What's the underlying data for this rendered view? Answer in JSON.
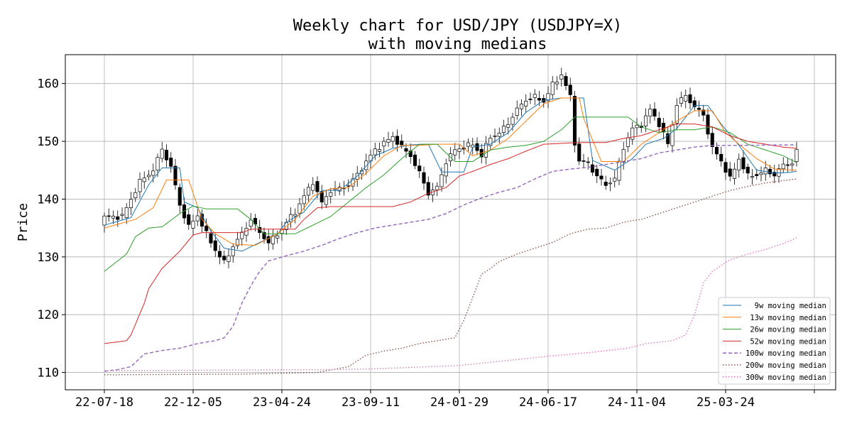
{
  "chart_data": {
    "type": "candlestick",
    "title_line1": "Weekly chart for USD/JPY (USDJPY=X)",
    "title_line2": "with moving medians",
    "ylabel": "Price",
    "xlabel": "",
    "ylim": [
      107,
      165
    ],
    "yticks": [
      110,
      120,
      130,
      140,
      150,
      160
    ],
    "xtick_labels": [
      "22-07-18",
      "22-12-05",
      "23-04-24",
      "23-09-11",
      "24-01-29",
      "24-06-17",
      "24-11-04",
      "25-03-24"
    ],
    "xtick_indices": [
      0,
      20,
      40,
      60,
      80,
      100,
      120,
      140
    ],
    "n_weeks": 157,
    "grid": true,
    "legend_position": "lower right",
    "anchors_close": [
      [
        0,
        136.9
      ],
      [
        4,
        137.0
      ],
      [
        8,
        143.0
      ],
      [
        11,
        145.0
      ],
      [
        13,
        148.7
      ],
      [
        15,
        145.5
      ],
      [
        17,
        139.0
      ],
      [
        19,
        135.2
      ],
      [
        21,
        137.2
      ],
      [
        23,
        134.0
      ],
      [
        25,
        131.2
      ],
      [
        27,
        129.0
      ],
      [
        29,
        131.9
      ],
      [
        31,
        134.0
      ],
      [
        33,
        136.5
      ],
      [
        35,
        134.2
      ],
      [
        37,
        132.5
      ],
      [
        39,
        133.9
      ],
      [
        41,
        136.0
      ],
      [
        43,
        137.8
      ],
      [
        45,
        140.5
      ],
      [
        47,
        143.0
      ],
      [
        49,
        139.3
      ],
      [
        51,
        141.5
      ],
      [
        53,
        141.8
      ],
      [
        55,
        142.5
      ],
      [
        57,
        144.2
      ],
      [
        59,
        146.5
      ],
      [
        61,
        148.5
      ],
      [
        63,
        149.7
      ],
      [
        65,
        150.8
      ],
      [
        67,
        149.0
      ],
      [
        69,
        147.5
      ],
      [
        71,
        144.5
      ],
      [
        73,
        141.0
      ],
      [
        75,
        142.0
      ],
      [
        77,
        146.5
      ],
      [
        79,
        148.5
      ],
      [
        81,
        149.0
      ],
      [
        83,
        149.5
      ],
      [
        85,
        147.5
      ],
      [
        87,
        150.8
      ],
      [
        89,
        151.4
      ],
      [
        91,
        153.2
      ],
      [
        93,
        155.5
      ],
      [
        95,
        157.2
      ],
      [
        97,
        157.7
      ],
      [
        99,
        156.9
      ],
      [
        101,
        159.8
      ],
      [
        103,
        161.5
      ],
      [
        105,
        157.7
      ],
      [
        106,
        149.8
      ],
      [
        107,
        146.5
      ],
      [
        109,
        146.2
      ],
      [
        111,
        143.9
      ],
      [
        113,
        142.5
      ],
      [
        115,
        143.5
      ],
      [
        117,
        149.0
      ],
      [
        119,
        152.2
      ],
      [
        121,
        152.9
      ],
      [
        123,
        155.5
      ],
      [
        125,
        153.0
      ],
      [
        127,
        149.5
      ],
      [
        129,
        156.5
      ],
      [
        131,
        157.9
      ],
      [
        133,
        156.0
      ],
      [
        135,
        154.5
      ],
      [
        137,
        148.8
      ],
      [
        139,
        146.6
      ],
      [
        141,
        143.5
      ],
      [
        143,
        147.0
      ],
      [
        145,
        144.0
      ],
      [
        147,
        144.2
      ],
      [
        149,
        145.0
      ],
      [
        151,
        144.2
      ],
      [
        153,
        145.9
      ],
      [
        155,
        146.3
      ],
      [
        156,
        148.2
      ]
    ],
    "anchors_ma9": [
      [
        0,
        135.5
      ],
      [
        6,
        136.8
      ],
      [
        10,
        142.5
      ],
      [
        13,
        145.4
      ],
      [
        17,
        145.4
      ],
      [
        18,
        139.5
      ],
      [
        21,
        138.5
      ],
      [
        24,
        134.5
      ],
      [
        27,
        131.5
      ],
      [
        31,
        131.0
      ],
      [
        35,
        132.5
      ],
      [
        39,
        133.9
      ],
      [
        41,
        136.0
      ],
      [
        45,
        137.8
      ],
      [
        49,
        141.5
      ],
      [
        53,
        141.5
      ],
      [
        57,
        144.0
      ],
      [
        61,
        147.5
      ],
      [
        65,
        148.8
      ],
      [
        69,
        149.4
      ],
      [
        73,
        149.5
      ],
      [
        76,
        144.7
      ],
      [
        81,
        144.7
      ],
      [
        83,
        149.0
      ],
      [
        87,
        149.5
      ],
      [
        91,
        151.5
      ],
      [
        95,
        155.0
      ],
      [
        99,
        157.1
      ],
      [
        103,
        157.5
      ],
      [
        108,
        157.5
      ],
      [
        110,
        146.7
      ],
      [
        115,
        145.0
      ],
      [
        119,
        147.0
      ],
      [
        122,
        149.5
      ],
      [
        126,
        150.5
      ],
      [
        129,
        152.2
      ],
      [
        133,
        156.2
      ],
      [
        136,
        156.2
      ],
      [
        139,
        153.0
      ],
      [
        143,
        149.3
      ],
      [
        147,
        145.0
      ],
      [
        151,
        144.5
      ],
      [
        154,
        144.6
      ],
      [
        156,
        144.8
      ]
    ],
    "anchors_ma13": [
      [
        0,
        135.0
      ],
      [
        7,
        136.5
      ],
      [
        11,
        138.5
      ],
      [
        14,
        143.3
      ],
      [
        19,
        143.3
      ],
      [
        22,
        136.5
      ],
      [
        25,
        134.0
      ],
      [
        29,
        132.2
      ],
      [
        34,
        132.0
      ],
      [
        39,
        134.0
      ],
      [
        43,
        136.5
      ],
      [
        47,
        140.5
      ],
      [
        51,
        141.8
      ],
      [
        55,
        142.0
      ],
      [
        59,
        144.5
      ],
      [
        63,
        147.5
      ],
      [
        67,
        149.3
      ],
      [
        71,
        149.3
      ],
      [
        75,
        149.5
      ],
      [
        80,
        149.5
      ],
      [
        83,
        147.5
      ],
      [
        87,
        148.5
      ],
      [
        91,
        150.5
      ],
      [
        95,
        153.5
      ],
      [
        99,
        156.5
      ],
      [
        103,
        157.5
      ],
      [
        107,
        157.5
      ],
      [
        108,
        154.0
      ],
      [
        112,
        146.5
      ],
      [
        117,
        146.5
      ],
      [
        121,
        149.5
      ],
      [
        125,
        151.5
      ],
      [
        129,
        153.5
      ],
      [
        133,
        155.3
      ],
      [
        137,
        155.3
      ],
      [
        140,
        151.5
      ],
      [
        143,
        149.5
      ],
      [
        147,
        147.0
      ],
      [
        151,
        145.2
      ],
      [
        156,
        145.0
      ]
    ],
    "anchors_ma26": [
      [
        0,
        127.5
      ],
      [
        5,
        130.5
      ],
      [
        7,
        133.5
      ],
      [
        10,
        135.0
      ],
      [
        13,
        135.2
      ],
      [
        17,
        137.5
      ],
      [
        20,
        138.8
      ],
      [
        23,
        138.3
      ],
      [
        30,
        138.3
      ],
      [
        33,
        136.5
      ],
      [
        36,
        134.0
      ],
      [
        43,
        134.0
      ],
      [
        47,
        135.5
      ],
      [
        51,
        137.0
      ],
      [
        55,
        139.5
      ],
      [
        59,
        142.0
      ],
      [
        63,
        144.2
      ],
      [
        67,
        147.0
      ],
      [
        71,
        149.5
      ],
      [
        75,
        149.5
      ],
      [
        79,
        146.5
      ],
      [
        83,
        146.5
      ],
      [
        87,
        148.5
      ],
      [
        91,
        149.0
      ],
      [
        95,
        149.3
      ],
      [
        99,
        150.0
      ],
      [
        103,
        152.0
      ],
      [
        106,
        154.2
      ],
      [
        118,
        154.2
      ],
      [
        121,
        152.5
      ],
      [
        125,
        151.5
      ],
      [
        129,
        152.0
      ],
      [
        133,
        152.0
      ],
      [
        137,
        152.5
      ],
      [
        141,
        151.5
      ],
      [
        145,
        149.5
      ],
      [
        149,
        148.5
      ],
      [
        153,
        147.5
      ],
      [
        156,
        146.3
      ]
    ],
    "anchors_ma52": [
      [
        0,
        115.0
      ],
      [
        5,
        115.5
      ],
      [
        6,
        116.5
      ],
      [
        9,
        122.0
      ],
      [
        10,
        124.5
      ],
      [
        13,
        128.0
      ],
      [
        17,
        131.0
      ],
      [
        20,
        133.8
      ],
      [
        22,
        134.2
      ],
      [
        31,
        134.2
      ],
      [
        33,
        134.8
      ],
      [
        43,
        134.8
      ],
      [
        45,
        136.5
      ],
      [
        48,
        138.5
      ],
      [
        51,
        138.7
      ],
      [
        65,
        138.7
      ],
      [
        69,
        139.5
      ],
      [
        73,
        141.0
      ],
      [
        77,
        142.0
      ],
      [
        80,
        144.0
      ],
      [
        83,
        144.8
      ],
      [
        87,
        146.0
      ],
      [
        91,
        147.0
      ],
      [
        95,
        148.3
      ],
      [
        99,
        149.5
      ],
      [
        107,
        149.8
      ],
      [
        113,
        149.8
      ],
      [
        117,
        150.5
      ],
      [
        121,
        151.0
      ],
      [
        125,
        152.0
      ],
      [
        129,
        153.0
      ],
      [
        133,
        153.0
      ],
      [
        137,
        152.5
      ],
      [
        141,
        151.0
      ],
      [
        145,
        150.0
      ],
      [
        149,
        149.5
      ],
      [
        153,
        149.0
      ],
      [
        156,
        148.8
      ]
    ],
    "anchors_ma100": [
      [
        0,
        110.2
      ],
      [
        3,
        110.5
      ],
      [
        6,
        111.0
      ],
      [
        9,
        113.2
      ],
      [
        13,
        113.8
      ],
      [
        17,
        114.2
      ],
      [
        21,
        115.0
      ],
      [
        25,
        115.5
      ],
      [
        27,
        116.0
      ],
      [
        29,
        118.0
      ],
      [
        31,
        122.0
      ],
      [
        33,
        125.0
      ],
      [
        35,
        127.5
      ],
      [
        37,
        129.3
      ],
      [
        41,
        130.2
      ],
      [
        45,
        131.0
      ],
      [
        49,
        132.0
      ],
      [
        53,
        133.2
      ],
      [
        57,
        134.2
      ],
      [
        61,
        135.0
      ],
      [
        65,
        135.5
      ],
      [
        69,
        136.0
      ],
      [
        73,
        136.5
      ],
      [
        77,
        137.5
      ],
      [
        81,
        139.0
      ],
      [
        85,
        140.2
      ],
      [
        89,
        141.2
      ],
      [
        93,
        142.0
      ],
      [
        97,
        143.5
      ],
      [
        101,
        144.8
      ],
      [
        105,
        145.2
      ],
      [
        109,
        145.5
      ],
      [
        113,
        146.0
      ],
      [
        117,
        146.5
      ],
      [
        121,
        147.0
      ],
      [
        125,
        148.0
      ],
      [
        129,
        148.5
      ],
      [
        133,
        149.0
      ],
      [
        137,
        149.3
      ],
      [
        143,
        149.3
      ],
      [
        156,
        149.4
      ]
    ],
    "anchors_ma200": [
      [
        0,
        109.6
      ],
      [
        30,
        109.7
      ],
      [
        48,
        110.0
      ],
      [
        55,
        111.0
      ],
      [
        59,
        113.0
      ],
      [
        63,
        113.7
      ],
      [
        67,
        114.2
      ],
      [
        71,
        115.0
      ],
      [
        75,
        115.5
      ],
      [
        79,
        116.0
      ],
      [
        81,
        119.0
      ],
      [
        83,
        123.0
      ],
      [
        85,
        127.0
      ],
      [
        87,
        128.0
      ],
      [
        89,
        129.2
      ],
      [
        93,
        130.5
      ],
      [
        97,
        131.5
      ],
      [
        101,
        132.5
      ],
      [
        105,
        134.0
      ],
      [
        109,
        134.8
      ],
      [
        113,
        135.0
      ],
      [
        117,
        136.0
      ],
      [
        121,
        136.5
      ],
      [
        125,
        137.5
      ],
      [
        129,
        138.5
      ],
      [
        133,
        139.5
      ],
      [
        137,
        140.5
      ],
      [
        141,
        141.5
      ],
      [
        145,
        142.2
      ],
      [
        149,
        142.8
      ],
      [
        153,
        143.2
      ],
      [
        156,
        143.5
      ]
    ],
    "anchors_ma300": [
      [
        0,
        110.3
      ],
      [
        50,
        110.5
      ],
      [
        60,
        110.6
      ],
      [
        70,
        110.9
      ],
      [
        80,
        111.2
      ],
      [
        90,
        112.0
      ],
      [
        100,
        112.8
      ],
      [
        110,
        113.5
      ],
      [
        118,
        114.2
      ],
      [
        122,
        115.0
      ],
      [
        128,
        115.5
      ],
      [
        131,
        116.5
      ],
      [
        133,
        120.0
      ],
      [
        135,
        125.5
      ],
      [
        137,
        127.5
      ],
      [
        141,
        129.5
      ],
      [
        145,
        130.5
      ],
      [
        149,
        131.3
      ],
      [
        153,
        132.3
      ],
      [
        156,
        133.3
      ]
    ],
    "series": [
      {
        "name": "9w moving median",
        "color": "#1f77b4",
        "style": "solid"
      },
      {
        "name": "13w moving median",
        "color": "#ff7f0e",
        "style": "solid"
      },
      {
        "name": "26w moving median",
        "color": "#2ca02c",
        "style": "solid"
      },
      {
        "name": "52w moving median",
        "color": "#d62728",
        "style": "solid"
      },
      {
        "name": "100w moving median",
        "color": "#9467bd",
        "style": "dashed"
      },
      {
        "name": "200w moving median",
        "color": "#8c564b",
        "style": "dotted"
      },
      {
        "name": "300w moving median",
        "color": "#e377c2",
        "style": "dotted"
      }
    ],
    "legend_labels": [
      "  9w moving median",
      " 13w moving median",
      " 26w moving median",
      " 52w moving median",
      "100w moving median",
      "200w moving median",
      "300w moving median"
    ]
  }
}
